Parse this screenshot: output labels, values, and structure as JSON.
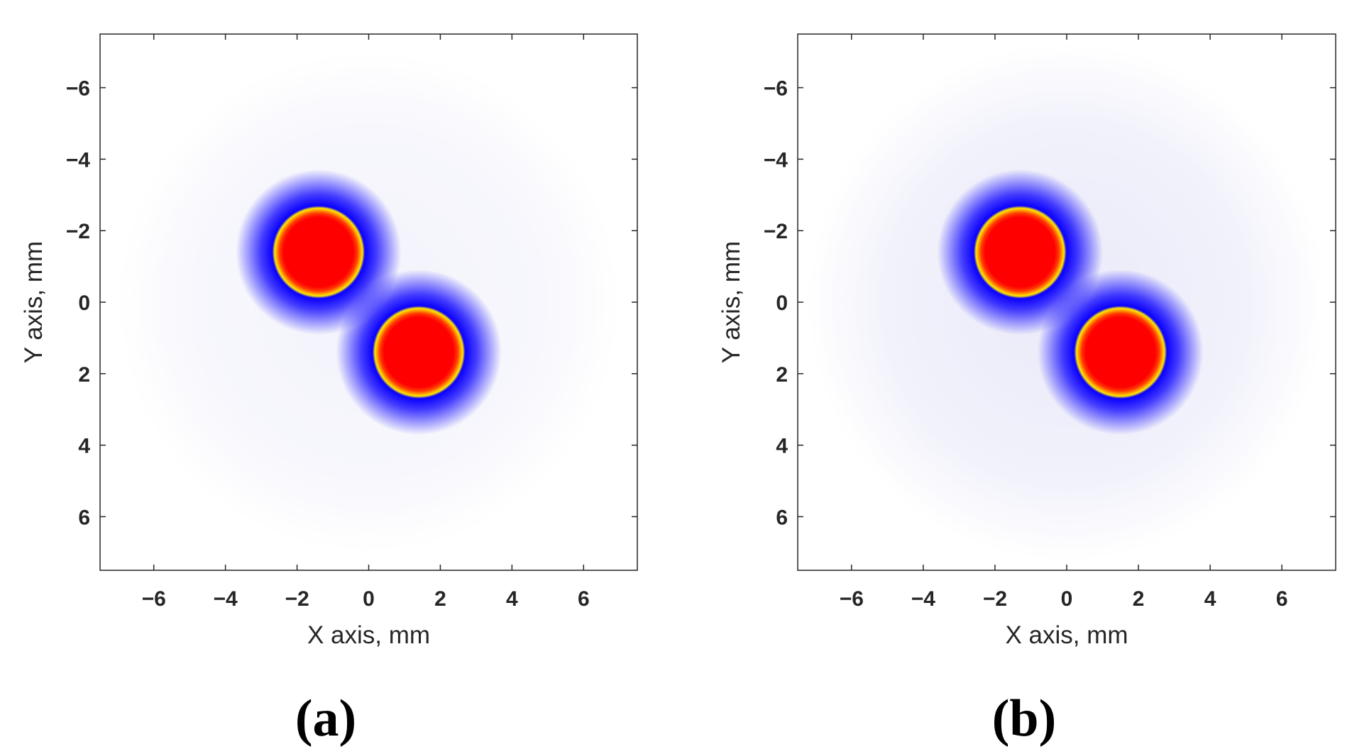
{
  "figure": {
    "panel_labels": [
      "(a)",
      "(b)"
    ]
  },
  "colors": {
    "halo": "#d9d9f5",
    "ring": "#0a00ff",
    "mid": "#ff3c00",
    "core": "#ff0000",
    "rim": "#ffe800",
    "axis": "#262626"
  },
  "chart_data": [
    {
      "type": "heatmap",
      "panel": "(a)",
      "title": "",
      "xlabel": "X axis, mm",
      "ylabel": "Y axis, mm",
      "xlim": [
        -7.5,
        7.5
      ],
      "ylim": [
        -7.5,
        7.5
      ],
      "y_reversed": true,
      "xticks": [
        -6,
        -4,
        -2,
        0,
        2,
        4,
        6
      ],
      "yticks": [
        -6,
        -4,
        -2,
        0,
        2,
        4,
        6
      ],
      "xtick_labels": [
        "−6",
        "−4",
        "−2",
        "0",
        "2",
        "4",
        "6"
      ],
      "ytick_labels": [
        "−6",
        "−4",
        "−2",
        "0",
        "2",
        "4",
        "6"
      ],
      "grid": false,
      "colormap": "white-blue-red-yellow",
      "spots": [
        {
          "x": -1.4,
          "y": -1.4,
          "radius": 1.25
        },
        {
          "x": 1.4,
          "y": 1.4,
          "radius": 1.25
        }
      ],
      "background_halo_radius": 7.0,
      "background_level": "faint"
    },
    {
      "type": "heatmap",
      "panel": "(b)",
      "title": "",
      "xlabel": "X axis, mm",
      "ylabel": "Y axis, mm",
      "xlim": [
        -7.5,
        7.5
      ],
      "ylim": [
        -7.5,
        7.5
      ],
      "y_reversed": true,
      "xticks": [
        -6,
        -4,
        -2,
        0,
        2,
        4,
        6
      ],
      "yticks": [
        -6,
        -4,
        -2,
        0,
        2,
        4,
        6
      ],
      "xtick_labels": [
        "−6",
        "−4",
        "−2",
        "0",
        "2",
        "4",
        "6"
      ],
      "ytick_labels": [
        "−6",
        "−4",
        "−2",
        "0",
        "2",
        "4",
        "6"
      ],
      "grid": false,
      "colormap": "white-blue-red-yellow",
      "spots": [
        {
          "x": -1.3,
          "y": -1.4,
          "radius": 1.25
        },
        {
          "x": 1.5,
          "y": 1.4,
          "radius": 1.25
        }
      ],
      "background_halo_radius": 7.2,
      "background_level": "visible"
    }
  ]
}
